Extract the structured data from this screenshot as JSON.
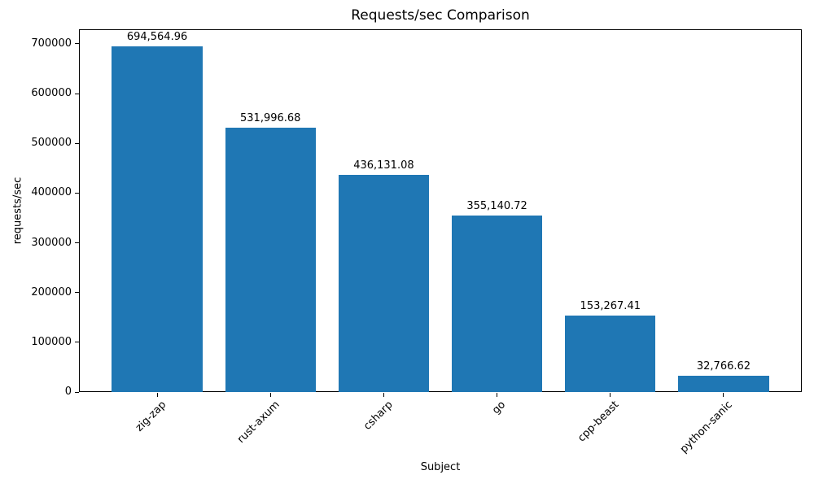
{
  "chart_data": {
    "type": "bar",
    "title": "Requests/sec Comparison",
    "xlabel": "Subject",
    "ylabel": "requests/sec",
    "categories": [
      "zig-zap",
      "rust-axum",
      "csharp",
      "go",
      "cpp-beast",
      "python-sanic"
    ],
    "values": [
      694564.96,
      531996.68,
      436131.08,
      355140.72,
      153267.41,
      32766.62
    ],
    "bar_labels": [
      "694,564.96",
      "531,996.68",
      "436,131.08",
      "355,140.72",
      "153,267.41",
      "32,766.62"
    ],
    "yticks": [
      0,
      100000,
      200000,
      300000,
      400000,
      500000,
      600000,
      700000
    ],
    "ytick_labels": [
      "0",
      "100000",
      "200000",
      "300000",
      "400000",
      "500000",
      "600000",
      "700000"
    ],
    "ylim": [
      0,
      729293.21
    ],
    "bar_width_fraction": 0.8,
    "bar_color": "#1f77b4",
    "grid": false,
    "legend": null
  }
}
